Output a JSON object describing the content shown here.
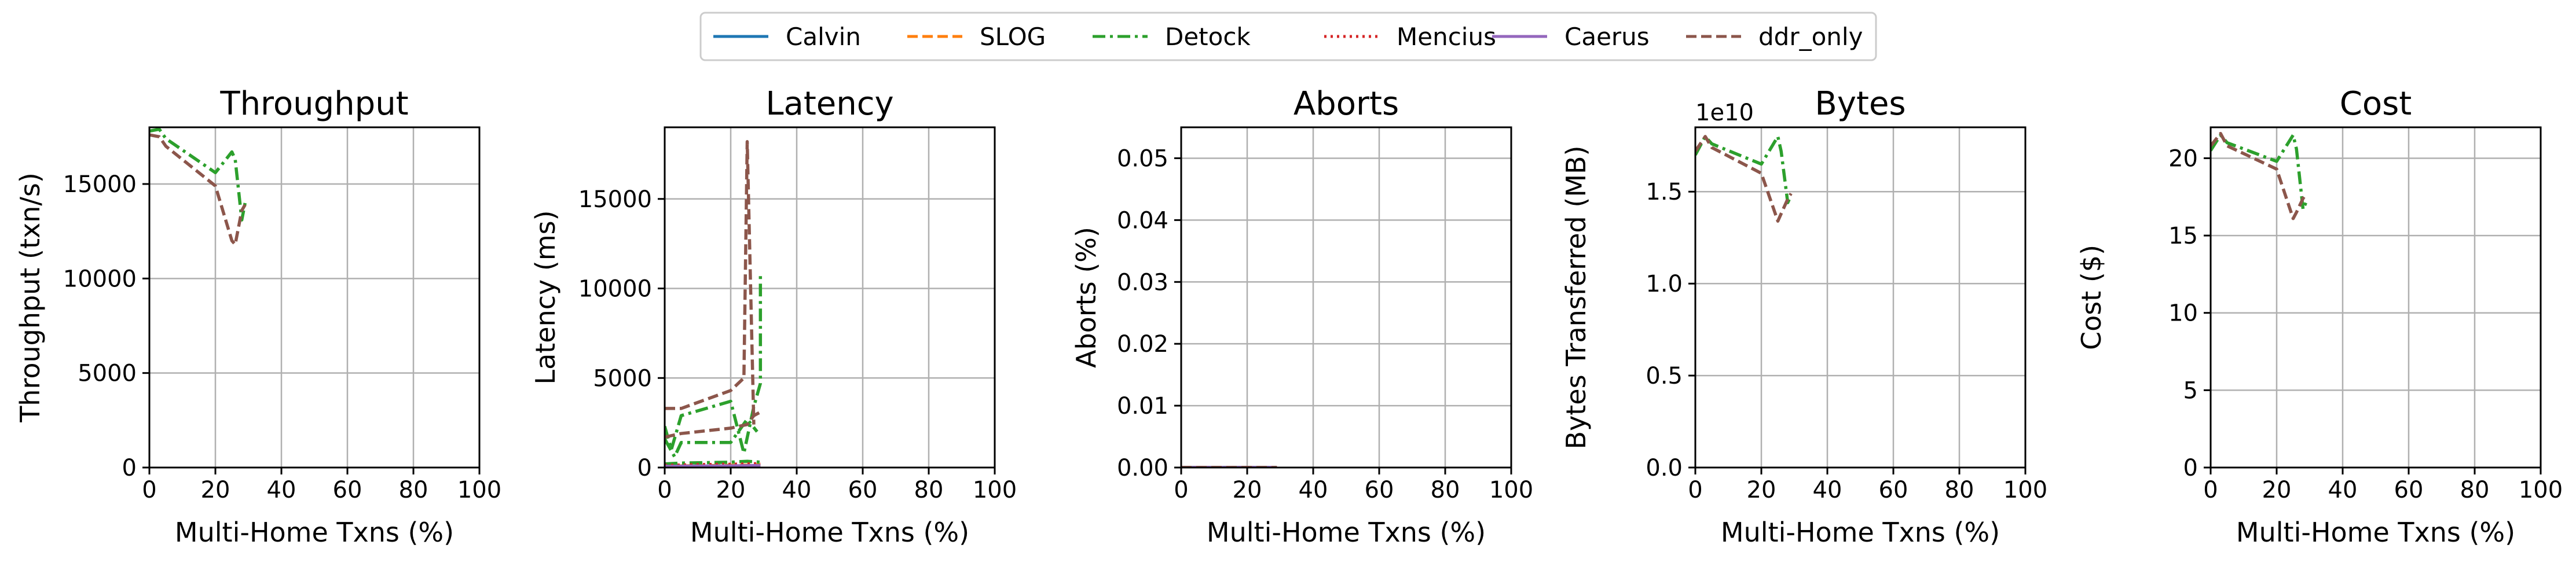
{
  "legend": {
    "placement": "top-center",
    "entries": [
      {
        "name": "Calvin",
        "color": "#1f77b4",
        "dash": "solid"
      },
      {
        "name": "SLOG",
        "color": "#ff7f0e",
        "dash": "dashed"
      },
      {
        "name": "Detock",
        "color": "#2ca02c",
        "dash": "dashdot"
      },
      {
        "name": "Mencius",
        "color": "#d62728",
        "dash": "dotted"
      },
      {
        "name": "Caerus",
        "color": "#9467bd",
        "dash": "solid"
      },
      {
        "name": "ddr_only",
        "color": "#8c564b",
        "dash": "dashed"
      }
    ]
  },
  "chart_data": [
    {
      "type": "line",
      "title": "Throughput",
      "xlabel": "Multi-Home Txns (%)",
      "ylabel": "Throughput (txn/s)",
      "xlim": [
        0,
        100
      ],
      "ylim": [
        0,
        18000
      ],
      "xticks": [
        0,
        20,
        40,
        60,
        80,
        100
      ],
      "yticks": [
        0,
        5000,
        10000,
        15000
      ],
      "ytick_labels": [
        "0",
        "5000",
        "10000",
        "15000"
      ],
      "grid": true,
      "series": [
        {
          "name": "Detock",
          "x": [
            0,
            3,
            5,
            20,
            25,
            26,
            28,
            29
          ],
          "y": [
            17800,
            17900,
            17400,
            15600,
            16700,
            16300,
            13100,
            14000
          ]
        },
        {
          "name": "ddr_only",
          "x": [
            0,
            3,
            5,
            20,
            25,
            26,
            28,
            29
          ],
          "y": [
            17600,
            17500,
            17000,
            14900,
            12000,
            11800,
            13600,
            13900
          ]
        }
      ]
    },
    {
      "type": "line",
      "title": "Latency",
      "xlabel": "Multi-Home Txns (%)",
      "ylabel": "Latency (ms)",
      "xlim": [
        0,
        100
      ],
      "ylim": [
        0,
        19000
      ],
      "xticks": [
        0,
        20,
        40,
        60,
        80,
        100
      ],
      "yticks": [
        0,
        5000,
        10000,
        15000
      ],
      "ytick_labels": [
        "0",
        "5000",
        "10000",
        "15000"
      ],
      "grid": true,
      "series": [
        {
          "name": "Calvin",
          "x": [
            0,
            5,
            10,
            20,
            25,
            29
          ],
          "y": [
            50,
            60,
            70,
            80,
            90,
            100
          ]
        },
        {
          "name": "SLOG",
          "x": [
            0,
            5,
            10,
            20,
            25,
            29
          ],
          "y": [
            80,
            90,
            100,
            120,
            130,
            150
          ]
        },
        {
          "name": "Detock",
          "x": [
            0,
            2,
            5,
            20,
            24,
            27,
            29,
            29
          ],
          "y": [
            2300,
            1000,
            2900,
            3700,
            800,
            3400,
            4700,
            10900
          ]
        },
        {
          "name": "Detock",
          "x": [
            0,
            3,
            5,
            20,
            25,
            28
          ],
          "y": [
            1600,
            600,
            1400,
            1400,
            2700,
            2000
          ]
        },
        {
          "name": "Detock",
          "x": [
            0,
            5,
            20,
            25,
            29
          ],
          "y": [
            200,
            250,
            300,
            350,
            300
          ]
        },
        {
          "name": "Mencius",
          "x": [
            0,
            5,
            10,
            20,
            25,
            29
          ],
          "y": [
            120,
            140,
            160,
            180,
            200,
            220
          ]
        },
        {
          "name": "Caerus",
          "x": [
            0,
            5,
            10,
            20,
            25,
            29
          ],
          "y": [
            60,
            70,
            80,
            90,
            100,
            110
          ]
        },
        {
          "name": "ddr_only",
          "x": [
            0,
            5,
            20,
            24,
            25,
            27
          ],
          "y": [
            3300,
            3300,
            4300,
            5000,
            18200,
            2400
          ]
        },
        {
          "name": "ddr_only",
          "x": [
            0,
            5,
            20,
            25,
            27,
            29
          ],
          "y": [
            1700,
            1900,
            2200,
            2400,
            2900,
            3100
          ]
        }
      ]
    },
    {
      "type": "line",
      "title": "Aborts",
      "xlabel": "Multi-Home Txns (%)",
      "ylabel": "Aborts (%)",
      "xlim": [
        0,
        100
      ],
      "ylim": [
        0,
        0.055
      ],
      "xticks": [
        0,
        20,
        40,
        60,
        80,
        100
      ],
      "yticks": [
        0,
        0.01,
        0.02,
        0.03,
        0.04,
        0.05
      ],
      "ytick_labels": [
        "0.00",
        "0.01",
        "0.02",
        "0.03",
        "0.04",
        "0.05"
      ],
      "grid": true,
      "series": [
        {
          "name": "Calvin",
          "x": [
            0,
            10,
            20,
            29
          ],
          "y": [
            0,
            0,
            0,
            0
          ]
        },
        {
          "name": "SLOG",
          "x": [
            0,
            10,
            20,
            29
          ],
          "y": [
            0,
            0,
            0,
            0
          ]
        },
        {
          "name": "Detock",
          "x": [
            0,
            10,
            20,
            29
          ],
          "y": [
            0,
            0,
            0,
            0
          ]
        },
        {
          "name": "Mencius",
          "x": [
            0,
            10,
            20,
            29
          ],
          "y": [
            0,
            0,
            0,
            0
          ]
        },
        {
          "name": "Caerus",
          "x": [
            0,
            10,
            20,
            29
          ],
          "y": [
            0,
            0,
            0,
            0
          ]
        },
        {
          "name": "ddr_only",
          "x": [
            0,
            10,
            20,
            29
          ],
          "y": [
            0,
            0,
            0,
            0
          ]
        }
      ]
    },
    {
      "type": "line",
      "title": "Bytes",
      "xlabel": "Multi-Home Txns (%)",
      "ylabel": "Bytes Transferred (MB)",
      "offset_text": "1e10",
      "xlim": [
        0,
        100
      ],
      "ylim": [
        0,
        1.85
      ],
      "xticks": [
        0,
        20,
        40,
        60,
        80,
        100
      ],
      "yticks": [
        0,
        0.5,
        1.0,
        1.5
      ],
      "ytick_labels": [
        "0.0",
        "0.5",
        "1.0",
        "1.5"
      ],
      "grid": true,
      "series": [
        {
          "name": "Detock",
          "x": [
            0,
            3,
            5,
            20,
            25,
            26,
            28,
            29
          ],
          "y": [
            1.7,
            1.8,
            1.76,
            1.65,
            1.8,
            1.72,
            1.44,
            1.48
          ]
        },
        {
          "name": "ddr_only",
          "x": [
            0,
            3,
            5,
            20,
            25,
            26,
            28,
            29
          ],
          "y": [
            1.72,
            1.8,
            1.74,
            1.6,
            1.34,
            1.38,
            1.46,
            1.49
          ]
        }
      ]
    },
    {
      "type": "line",
      "title": "Cost",
      "xlabel": "Multi-Home Txns (%)",
      "ylabel": "Cost ($)",
      "xlim": [
        0,
        100
      ],
      "ylim": [
        0,
        22
      ],
      "xticks": [
        0,
        20,
        40,
        60,
        80,
        100
      ],
      "yticks": [
        0,
        5,
        10,
        15,
        20
      ],
      "ytick_labels": [
        "0",
        "5",
        "10",
        "15",
        "20"
      ],
      "grid": true,
      "series": [
        {
          "name": "Detock",
          "x": [
            0,
            3,
            5,
            20,
            25,
            26,
            28,
            29
          ],
          "y": [
            20.5,
            21.5,
            21.0,
            19.8,
            21.5,
            20.6,
            16.7,
            17.2
          ]
        },
        {
          "name": "ddr_only",
          "x": [
            0,
            3,
            5,
            20,
            25,
            26,
            28,
            29
          ],
          "y": [
            20.8,
            21.6,
            20.8,
            19.3,
            16.1,
            16.5,
            17.4,
            17.7
          ]
        }
      ]
    }
  ]
}
